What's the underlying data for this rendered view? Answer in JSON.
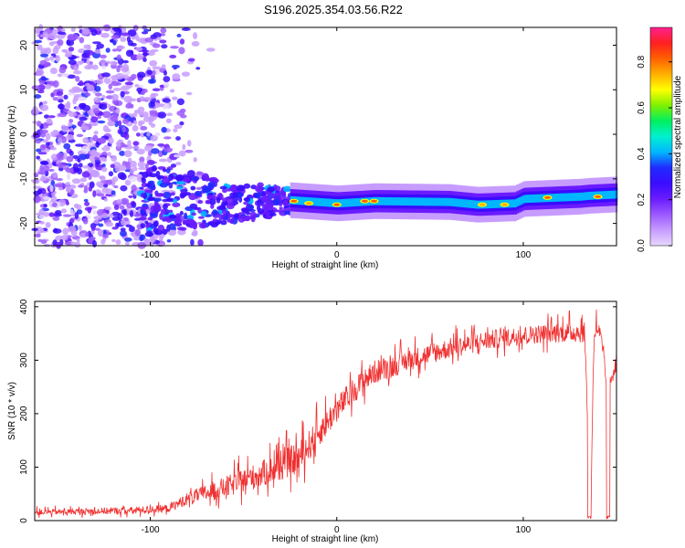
{
  "figure_title": "S196.2025.354.03.56.R22",
  "colormap": [
    "#e8d8ff",
    "#c79cff",
    "#9b59ff",
    "#6a1cff",
    "#3a0cff",
    "#1f2bff",
    "#00b7ff",
    "#00f0d0",
    "#00f060",
    "#7ff000",
    "#ffff00",
    "#ffb000",
    "#ff6000",
    "#ff2020",
    "#ff2090"
  ],
  "chart_data": [
    {
      "type": "heatmap",
      "title": "",
      "xlabel": "Height of straight line (km)",
      "ylabel": "Frequency (Hz)",
      "xlim": [
        -162,
        150
      ],
      "ylim": [
        -25,
        24
      ],
      "xticks": [
        -100,
        0,
        100
      ],
      "yticks": [
        -20,
        -10,
        0,
        10,
        20
      ],
      "grid": false,
      "description_values": {
        "noise_region_x": [
          -162,
          -75
        ],
        "transition_region_x": [
          -100,
          -25
        ],
        "carrier_band_x": [
          -25,
          150
        ],
        "carrier_frequency_hz": [
          [
            -25,
            -14.8
          ],
          [
            0,
            -15.5
          ],
          [
            20,
            -15.0
          ],
          [
            60,
            -15.2
          ],
          [
            75,
            -15.8
          ],
          [
            95,
            -15.5
          ],
          [
            100,
            -14.5
          ],
          [
            130,
            -14.0
          ],
          [
            135,
            -13.8
          ],
          [
            150,
            -13.5
          ]
        ],
        "hot_spots": [
          {
            "x": -23,
            "y": -15.0,
            "amp": 0.85
          },
          {
            "x": -15,
            "y": -15.5,
            "amp": 0.8
          },
          {
            "x": 0,
            "y": -15.8,
            "amp": 0.85
          },
          {
            "x": 15,
            "y": -15.0,
            "amp": 0.85
          },
          {
            "x": 20,
            "y": -15.0,
            "amp": 0.85
          },
          {
            "x": 78,
            "y": -15.8,
            "amp": 0.8
          },
          {
            "x": 90,
            "y": -15.8,
            "amp": 0.8
          },
          {
            "x": 113,
            "y": -14.2,
            "amp": 0.85
          },
          {
            "x": 140,
            "y": -14.0,
            "amp": 0.85
          }
        ]
      },
      "colorbar": {
        "label": "Normalized spectral amplitude",
        "range": [
          0.0,
          0.95
        ],
        "ticks": [
          "0.0",
          "0.2",
          "0.4",
          "0.6",
          "0.8"
        ]
      }
    },
    {
      "type": "line",
      "title": "",
      "xlabel": "Height of straight line (km)",
      "ylabel": "SNR (10 * v/v)",
      "xlim": [
        -162,
        150
      ],
      "ylim": [
        0,
        410
      ],
      "xticks": [
        -100,
        0,
        100
      ],
      "yticks": [
        0,
        100,
        200,
        300,
        400
      ],
      "grid": false,
      "series": [
        {
          "name": "SNR",
          "color": "#f03030",
          "trend_x": [
            -162,
            -110,
            -90,
            -80,
            -60,
            -40,
            -20,
            -10,
            0,
            10,
            20,
            40,
            60,
            80,
            100,
            120,
            133,
            136,
            138,
            140,
            142,
            145,
            150
          ],
          "trend_y": [
            15,
            18,
            22,
            40,
            60,
            85,
            115,
            160,
            205,
            245,
            275,
            300,
            320,
            335,
            345,
            350,
            350,
            5,
            350,
            360,
            330,
            240,
            300
          ],
          "noise_amplitude": [
            [
              -162,
              10
            ],
            [
              -90,
              15
            ],
            [
              -60,
              40
            ],
            [
              -20,
              60
            ],
            [
              0,
              50
            ],
            [
              40,
              40
            ],
            [
              100,
              35
            ],
            [
              150,
              40
            ]
          ]
        }
      ]
    }
  ]
}
